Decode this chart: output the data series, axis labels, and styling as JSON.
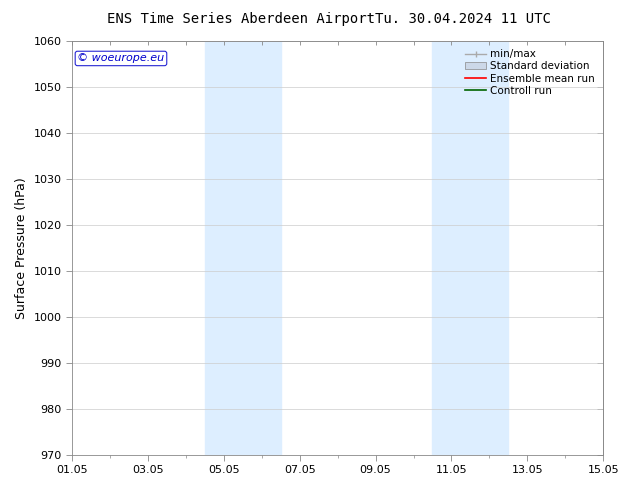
{
  "title_left": "ENS Time Series Aberdeen Airport",
  "title_right": "Tu. 30.04.2024 11 UTC",
  "ylabel": "Surface Pressure (hPa)",
  "ylim": [
    970,
    1060
  ],
  "yticks": [
    970,
    980,
    990,
    1000,
    1010,
    1020,
    1030,
    1040,
    1050,
    1060
  ],
  "xlim": [
    0,
    14
  ],
  "xtick_labels": [
    "01.05",
    "03.05",
    "05.05",
    "07.05",
    "09.05",
    "11.05",
    "13.05",
    "15.05"
  ],
  "xtick_positions": [
    0,
    2,
    4,
    6,
    8,
    10,
    12,
    14
  ],
  "shaded_bands": [
    {
      "x_start": 3.5,
      "x_end": 5.5,
      "color": "#ddeeff"
    },
    {
      "x_start": 9.5,
      "x_end": 11.5,
      "color": "#ddeeff"
    }
  ],
  "watermark_text": "© woeurope.eu",
  "watermark_color": "#0000cc",
  "legend_items": [
    {
      "label": "min/max",
      "color": "#aaaaaa",
      "type": "line_with_caps"
    },
    {
      "label": "Standard deviation",
      "color": "#ccd8e8",
      "type": "filled_box"
    },
    {
      "label": "Ensemble mean run",
      "color": "#ff0000",
      "type": "line"
    },
    {
      "label": "Controll run",
      "color": "#006400",
      "type": "line"
    }
  ],
  "bg_color": "#ffffff",
  "plot_bg_color": "#ffffff",
  "grid_color": "#cccccc",
  "title_fontsize": 10,
  "ylabel_fontsize": 9,
  "tick_fontsize": 8,
  "legend_fontsize": 7.5,
  "watermark_fontsize": 8
}
